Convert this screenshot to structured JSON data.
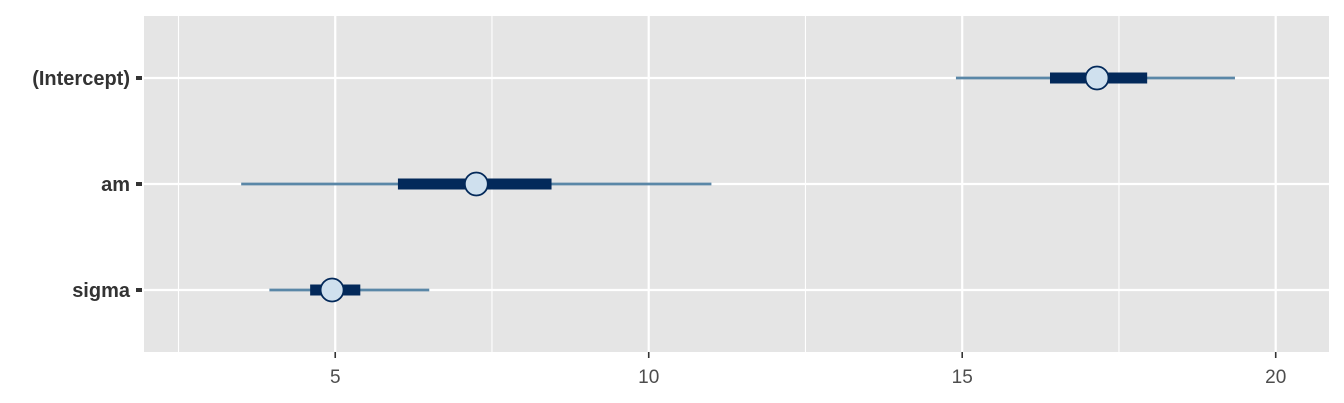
{
  "chart_data": {
    "type": "interval",
    "parameters": [
      "(Intercept)",
      "am",
      "sigma"
    ],
    "intervals": [
      {
        "name": "(Intercept)",
        "median": 17.15,
        "inner": [
          16.4,
          17.95
        ],
        "outer": [
          14.9,
          19.35
        ]
      },
      {
        "name": "am",
        "median": 7.25,
        "inner": [
          6.0,
          8.45
        ],
        "outer": [
          3.5,
          11.0
        ]
      },
      {
        "name": "sigma",
        "median": 4.95,
        "inner": [
          4.6,
          5.4
        ],
        "outer": [
          3.95,
          6.5
        ]
      }
    ],
    "x_ticks": [
      5,
      10,
      15,
      20
    ],
    "x_tick_labels": [
      "5",
      "10",
      "15",
      "20"
    ],
    "xlim": [
      1.95,
      20.85
    ],
    "xlabel": "",
    "ylabel": "",
    "grid": true,
    "colors": {
      "panel": "#e5e5e5",
      "grid": "#ffffff",
      "outer_line": "#5a87a7",
      "inner_bar": "#03295a",
      "point_fill": "#cfe0ee",
      "point_stroke": "#03295a",
      "tick": "#333333"
    }
  }
}
